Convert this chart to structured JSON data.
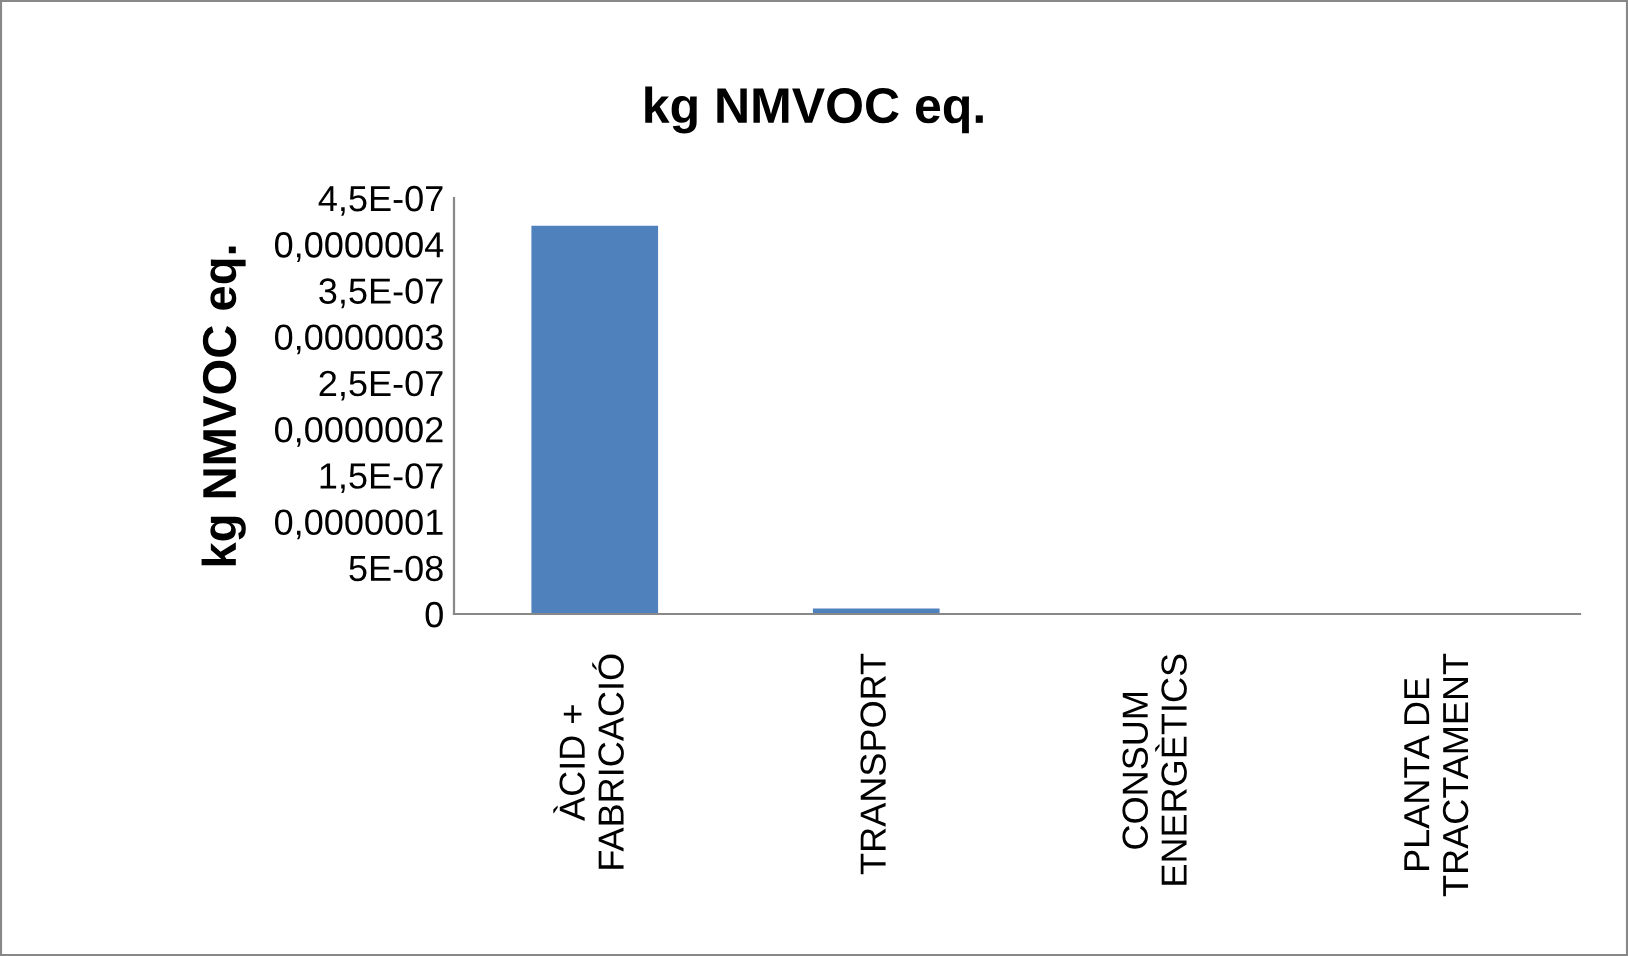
{
  "chart_data": {
    "type": "bar",
    "title": "kg NMVOC eq.",
    "ylabel": "kg NMVOC eq.",
    "categories": [
      "ÀCID +\nFABRICACIÓ",
      "TRANSPORT",
      "CONSUM\nENERGÈTICS",
      "PLANTA DE\nTRACTAMENT"
    ],
    "values": [
      4.2e-07,
      6e-09,
      0,
      0
    ],
    "color": "#4f81bd",
    "ylim": [
      0,
      4.5e-07
    ],
    "yticks": [
      {
        "value": 0,
        "label": "0"
      },
      {
        "value": 5e-08,
        "label": "5E-08"
      },
      {
        "value": 1e-07,
        "label": "0,0000001"
      },
      {
        "value": 1.5e-07,
        "label": "1,5E-07"
      },
      {
        "value": 2e-07,
        "label": "0,0000002"
      },
      {
        "value": 2.5e-07,
        "label": "2,5E-07"
      },
      {
        "value": 3e-07,
        "label": "0,0000003"
      },
      {
        "value": 3.5e-07,
        "label": "3,5E-07"
      },
      {
        "value": 4e-07,
        "label": "0,0000004"
      },
      {
        "value": 4.5e-07,
        "label": "4,5E-07"
      }
    ],
    "grid": false,
    "legend": false
  }
}
